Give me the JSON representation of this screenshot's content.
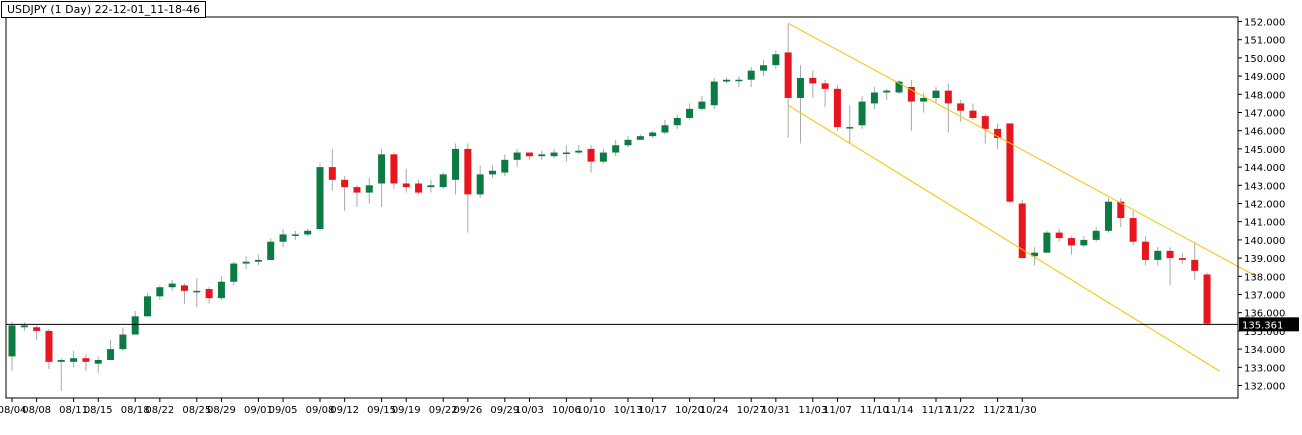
{
  "chart_data": {
    "type": "candlestick",
    "title": "USDJPY (1 Day) 22-12-01_11-18-46",
    "ylim": [
      131.5,
      152.1
    ],
    "y_ticks": [
      "152.000",
      "151.000",
      "150.000",
      "149.000",
      "148.000",
      "147.000",
      "146.000",
      "145.000",
      "144.000",
      "143.000",
      "142.000",
      "141.000",
      "140.000",
      "139.000",
      "138.000",
      "137.000",
      "136.000",
      "135.000",
      "134.000",
      "133.000",
      "132.000"
    ],
    "x_tick_labels": [
      {
        "label": "08/04",
        "index": 0
      },
      {
        "label": "08/08",
        "index": 2
      },
      {
        "label": "08/11",
        "index": 5
      },
      {
        "label": "08/15",
        "index": 7
      },
      {
        "label": "08/18",
        "index": 10
      },
      {
        "label": "08/22",
        "index": 12
      },
      {
        "label": "08/25",
        "index": 15
      },
      {
        "label": "08/29",
        "index": 17
      },
      {
        "label": "09/01",
        "index": 20
      },
      {
        "label": "09/05",
        "index": 22
      },
      {
        "label": "09/08",
        "index": 25
      },
      {
        "label": "09/12",
        "index": 27
      },
      {
        "label": "09/15",
        "index": 30
      },
      {
        "label": "09/19",
        "index": 32
      },
      {
        "label": "09/22",
        "index": 35
      },
      {
        "label": "09/26",
        "index": 37
      },
      {
        "label": "09/29",
        "index": 40
      },
      {
        "label": "10/03",
        "index": 42
      },
      {
        "label": "10/06",
        "index": 45
      },
      {
        "label": "10/10",
        "index": 47
      },
      {
        "label": "10/13",
        "index": 50
      },
      {
        "label": "10/17",
        "index": 52
      },
      {
        "label": "10/20",
        "index": 55
      },
      {
        "label": "10/24",
        "index": 57
      },
      {
        "label": "10/27",
        "index": 60
      },
      {
        "label": "10/31",
        "index": 62
      },
      {
        "label": "11/03",
        "index": 65
      },
      {
        "label": "11/07",
        "index": 67
      },
      {
        "label": "11/10",
        "index": 70
      },
      {
        "label": "11/14",
        "index": 72
      },
      {
        "label": "11/17",
        "index": 75
      },
      {
        "label": "11/22",
        "index": 77
      },
      {
        "label": "11/27",
        "index": 80
      },
      {
        "label": "11/30",
        "index": 82
      }
    ],
    "candles": [
      [
        133.6,
        135.3,
        132.8,
        135.5
      ],
      [
        135.2,
        135.3,
        135.0,
        135.5
      ],
      [
        135.2,
        135.0,
        134.5,
        135.3
      ],
      [
        135.0,
        133.3,
        132.9,
        135.1
      ],
      [
        133.3,
        133.4,
        131.7,
        133.5
      ],
      [
        133.3,
        133.5,
        133.0,
        133.9
      ],
      [
        133.5,
        133.3,
        132.8,
        133.7
      ],
      [
        133.2,
        133.4,
        132.7,
        133.6
      ],
      [
        133.4,
        134.0,
        133.4,
        134.5
      ],
      [
        134.0,
        134.8,
        133.9,
        135.2
      ],
      [
        134.8,
        135.8,
        134.8,
        136.1
      ],
      [
        135.8,
        136.9,
        135.8,
        137.1
      ],
      [
        136.9,
        137.4,
        136.7,
        137.5
      ],
      [
        137.4,
        137.6,
        137.2,
        137.8
      ],
      [
        137.5,
        137.2,
        136.5,
        137.6
      ],
      [
        137.2,
        137.2,
        136.3,
        137.9
      ],
      [
        137.3,
        136.8,
        136.5,
        137.4
      ],
      [
        136.8,
        137.7,
        136.7,
        138.0
      ],
      [
        137.7,
        138.7,
        137.5,
        138.8
      ],
      [
        138.7,
        138.8,
        138.4,
        139.1
      ],
      [
        138.8,
        138.9,
        138.6,
        139.2
      ],
      [
        138.9,
        139.9,
        138.9,
        140.1
      ],
      [
        139.9,
        140.3,
        139.6,
        140.6
      ],
      [
        140.3,
        140.3,
        140.0,
        140.5
      ],
      [
        140.3,
        140.5,
        140.2,
        140.6
      ],
      [
        140.6,
        144.0,
        140.5,
        144.2
      ],
      [
        144.0,
        143.3,
        142.7,
        145.0
      ],
      [
        143.3,
        142.9,
        141.6,
        143.5
      ],
      [
        142.9,
        142.6,
        141.8,
        143.0
      ],
      [
        142.6,
        143.0,
        142.0,
        143.4
      ],
      [
        143.1,
        144.7,
        141.8,
        145.0
      ],
      [
        144.7,
        143.1,
        142.8,
        144.8
      ],
      [
        143.1,
        142.9,
        142.6,
        143.9
      ],
      [
        143.1,
        142.6,
        142.5,
        143.3
      ],
      [
        142.9,
        143.0,
        142.6,
        143.3
      ],
      [
        142.9,
        143.6,
        142.8,
        143.7
      ],
      [
        143.3,
        145.0,
        142.5,
        145.3
      ],
      [
        145.0,
        142.5,
        140.4,
        145.3
      ],
      [
        142.5,
        143.6,
        142.3,
        144.1
      ],
      [
        143.6,
        143.8,
        143.4,
        144.1
      ],
      [
        143.7,
        144.4,
        143.5,
        144.7
      ],
      [
        144.4,
        144.8,
        144.0,
        145.0
      ],
      [
        144.8,
        144.6,
        144.4,
        144.8
      ],
      [
        144.6,
        144.7,
        144.4,
        144.9
      ],
      [
        144.6,
        144.8,
        144.5,
        145.0
      ],
      [
        144.8,
        144.8,
        144.3,
        145.2
      ],
      [
        144.8,
        144.9,
        144.7,
        145.2
      ],
      [
        145.0,
        144.3,
        143.7,
        145.2
      ],
      [
        144.3,
        144.8,
        144.2,
        145.0
      ],
      [
        144.8,
        145.2,
        144.6,
        145.5
      ],
      [
        145.2,
        145.5,
        145.1,
        145.7
      ],
      [
        145.5,
        145.7,
        145.5,
        145.8
      ],
      [
        145.7,
        145.9,
        145.6,
        146.0
      ],
      [
        145.9,
        146.3,
        145.8,
        146.6
      ],
      [
        146.3,
        146.7,
        146.1,
        146.9
      ],
      [
        146.7,
        147.2,
        146.6,
        147.5
      ],
      [
        147.2,
        147.6,
        147.1,
        147.9
      ],
      [
        147.4,
        148.7,
        147.2,
        148.9
      ],
      [
        148.7,
        148.8,
        148.6,
        148.9
      ],
      [
        148.8,
        148.8,
        148.4,
        149.0
      ],
      [
        148.8,
        149.3,
        148.4,
        149.5
      ],
      [
        149.3,
        149.6,
        149.0,
        149.9
      ],
      [
        149.6,
        150.2,
        149.4,
        150.4
      ],
      [
        150.3,
        147.8,
        145.6,
        151.9
      ],
      [
        147.8,
        148.9,
        145.3,
        149.6
      ],
      [
        148.9,
        148.6,
        147.8,
        149.3
      ],
      [
        148.6,
        148.3,
        147.3,
        148.8
      ],
      [
        148.3,
        146.2,
        146.0,
        148.5
      ],
      [
        146.2,
        146.2,
        145.3,
        147.4
      ],
      [
        146.3,
        147.6,
        146.1,
        147.9
      ],
      [
        147.5,
        148.1,
        147.2,
        148.4
      ],
      [
        148.1,
        148.2,
        147.7,
        148.3
      ],
      [
        148.1,
        148.7,
        148.0,
        148.8
      ],
      [
        148.4,
        147.6,
        146.0,
        148.8
      ],
      [
        147.6,
        147.8,
        147.0,
        148.1
      ],
      [
        147.8,
        148.2,
        147.5,
        148.4
      ],
      [
        148.2,
        147.5,
        145.9,
        148.6
      ],
      [
        147.5,
        147.1,
        146.5,
        147.7
      ],
      [
        147.1,
        146.7,
        146.6,
        147.5
      ],
      [
        146.8,
        146.1,
        145.3,
        146.9
      ],
      [
        146.1,
        145.6,
        145.0,
        146.4
      ],
      [
        146.4,
        142.1,
        142.0,
        146.4
      ],
      [
        142.0,
        139.0,
        139.0,
        142.2
      ],
      [
        139.1,
        139.3,
        138.6,
        139.6
      ],
      [
        139.3,
        140.4,
        139.3,
        140.5
      ],
      [
        140.4,
        140.1,
        139.9,
        140.6
      ],
      [
        140.1,
        139.7,
        139.2,
        140.2
      ],
      [
        139.7,
        140.0,
        139.6,
        140.2
      ],
      [
        140.0,
        140.5,
        139.9,
        140.7
      ],
      [
        140.5,
        142.1,
        140.4,
        142.3
      ],
      [
        142.1,
        141.2,
        140.7,
        142.3
      ],
      [
        141.2,
        139.9,
        139.7,
        141.6
      ],
      [
        139.9,
        138.9,
        138.6,
        140.2
      ],
      [
        138.9,
        139.4,
        138.6,
        139.6
      ],
      [
        139.4,
        139.0,
        137.5,
        139.6
      ],
      [
        139.0,
        138.9,
        138.7,
        139.3
      ],
      [
        138.9,
        138.3,
        137.8,
        139.9
      ],
      [
        138.1,
        135.4,
        135.3,
        138.2
      ]
    ],
    "channel_upper": {
      "from": [
        63,
        151.9
      ],
      "to": [
        101,
        138.0
      ]
    },
    "channel_lower": {
      "from": [
        63,
        147.4
      ],
      "to": [
        98,
        132.8
      ]
    },
    "last_price": "135.361",
    "last_price_value": 135.361,
    "colors": {
      "up": "#0b7a43",
      "down": "#e8141e",
      "wick": "#a8a8a8",
      "channel": "#f5c400",
      "price_line": "#000000",
      "axis": "#000000"
    }
  }
}
